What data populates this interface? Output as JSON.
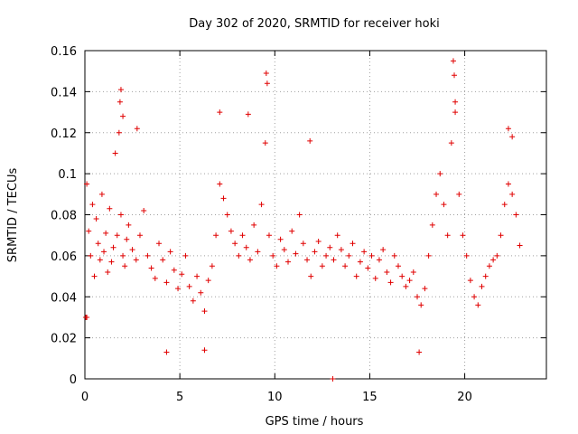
{
  "chart_data": {
    "type": "scatter",
    "title": "Day 302 of 2020, SRMTID for receiver hoki",
    "xlabel": "GPS time / hours",
    "ylabel": "SRMTID / TECUs",
    "xlim": [
      0,
      24.3
    ],
    "ylim": [
      0,
      0.16
    ],
    "x_ticks": [
      0,
      5,
      10,
      15,
      20
    ],
    "x_tick_labels": [
      "0",
      "5",
      "10",
      "15",
      "20"
    ],
    "y_ticks": [
      0,
      0.02,
      0.04,
      0.06,
      0.08,
      0.1,
      0.12,
      0.14,
      0.16
    ],
    "y_tick_labels": [
      "0",
      "0.02",
      "0.04",
      "0.06",
      "0.08",
      "0.1",
      "0.12",
      "0.14",
      "0.16"
    ],
    "grid": true,
    "marker": "+",
    "series": [
      {
        "name": "SRMTID",
        "color": "#e00000",
        "x": [
          0.05,
          0.1,
          0.2,
          0.3,
          0.4,
          0.5,
          0.6,
          0.7,
          0.8,
          0.9,
          1.0,
          1.1,
          1.2,
          1.3,
          1.4,
          1.5,
          1.6,
          1.7,
          1.8,
          1.9,
          2.0,
          2.1,
          2.2,
          2.3,
          2.5,
          2.7,
          2.9,
          3.1,
          3.3,
          3.5,
          3.7,
          3.9,
          4.1,
          4.3,
          4.5,
          4.7,
          4.9,
          5.1,
          5.3,
          5.5,
          5.7,
          5.9,
          6.1,
          6.3,
          6.5,
          6.7,
          6.9,
          7.1,
          7.3,
          7.5,
          7.7,
          7.9,
          8.1,
          8.3,
          8.5,
          8.7,
          8.9,
          9.1,
          9.3,
          9.5,
          9.7,
          9.9,
          10.1,
          10.3,
          10.5,
          10.7,
          10.9,
          11.1,
          11.3,
          11.5,
          11.7,
          11.9,
          12.1,
          12.3,
          12.5,
          12.7,
          12.9,
          13.1,
          13.3,
          13.5,
          13.7,
          13.9,
          14.1,
          14.3,
          14.5,
          14.7,
          14.9,
          15.1,
          15.3,
          15.5,
          15.7,
          15.9,
          16.1,
          16.3,
          16.5,
          16.7,
          16.9,
          17.1,
          17.3,
          17.5,
          17.7,
          17.9,
          18.1,
          18.3,
          18.5,
          18.7,
          18.9,
          19.1,
          19.3,
          19.5,
          19.7,
          19.9,
          20.1,
          20.3,
          20.5,
          20.7,
          20.9,
          21.1,
          21.3,
          21.5,
          21.7,
          21.9,
          22.1,
          22.3,
          22.5,
          22.7,
          22.9,
          1.85,
          1.9,
          2.0,
          9.55,
          9.6,
          19.4,
          19.45,
          19.5,
          2.75,
          11.85,
          13.05,
          4.3,
          6.3,
          17.6,
          22.3,
          22.5,
          7.1,
          8.6,
          0.1
        ],
        "y": [
          0.03,
          0.095,
          0.072,
          0.06,
          0.085,
          0.05,
          0.078,
          0.066,
          0.058,
          0.09,
          0.062,
          0.071,
          0.052,
          0.083,
          0.057,
          0.064,
          0.11,
          0.07,
          0.12,
          0.08,
          0.06,
          0.055,
          0.068,
          0.075,
          0.063,
          0.058,
          0.07,
          0.082,
          0.06,
          0.054,
          0.049,
          0.066,
          0.058,
          0.047,
          0.062,
          0.053,
          0.044,
          0.051,
          0.06,
          0.045,
          0.038,
          0.05,
          0.042,
          0.033,
          0.048,
          0.055,
          0.07,
          0.095,
          0.088,
          0.08,
          0.072,
          0.066,
          0.06,
          0.07,
          0.064,
          0.058,
          0.075,
          0.062,
          0.085,
          0.115,
          0.07,
          0.06,
          0.055,
          0.068,
          0.063,
          0.057,
          0.072,
          0.061,
          0.08,
          0.066,
          0.058,
          0.05,
          0.062,
          0.067,
          0.055,
          0.06,
          0.064,
          0.058,
          0.07,
          0.063,
          0.055,
          0.06,
          0.066,
          0.05,
          0.057,
          0.062,
          0.054,
          0.06,
          0.049,
          0.058,
          0.063,
          0.052,
          0.047,
          0.06,
          0.055,
          0.05,
          0.045,
          0.048,
          0.052,
          0.04,
          0.036,
          0.044,
          0.06,
          0.075,
          0.09,
          0.1,
          0.085,
          0.07,
          0.115,
          0.13,
          0.09,
          0.07,
          0.06,
          0.048,
          0.04,
          0.036,
          0.045,
          0.05,
          0.055,
          0.058,
          0.06,
          0.07,
          0.085,
          0.095,
          0.09,
          0.08,
          0.065,
          0.135,
          0.141,
          0.128,
          0.149,
          0.144,
          0.155,
          0.148,
          0.135,
          0.122,
          0.116,
          0.0,
          0.013,
          0.014,
          0.013,
          0.122,
          0.118,
          0.13,
          0.129,
          0.03
        ]
      }
    ]
  }
}
